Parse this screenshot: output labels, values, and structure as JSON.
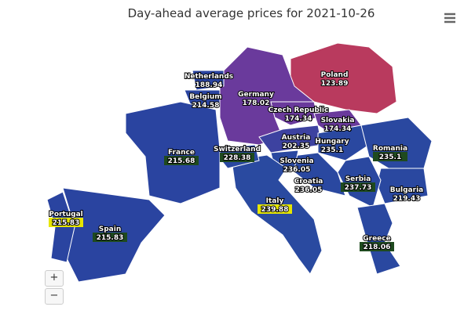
{
  "title": "Day-ahead average prices for 2021-10-26",
  "regions": [
    {
      "name": "Poland",
      "value": 123.89,
      "color": "#b93a5e"
    },
    {
      "name": "Germany",
      "value": 178.02,
      "color": "#6a3a9c"
    },
    {
      "name": "Netherlands",
      "value": 188.94,
      "color": "#2a44a0"
    },
    {
      "name": "Belgium",
      "value": 214.58,
      "color": "#2a44a0"
    },
    {
      "name": "Czech Republic",
      "value": 174.34,
      "color": "#6a3a9c"
    },
    {
      "name": "Slovakia",
      "value": 174.34,
      "color": "#6a3a9c"
    },
    {
      "name": "Austria",
      "value": 202.35,
      "color": "#3d42a0"
    },
    {
      "name": "Hungary",
      "value": 235.1,
      "color": "#2a48a0"
    },
    {
      "name": "Romania",
      "value": 235.1,
      "color": "#2a48a0"
    },
    {
      "name": "Bulgaria",
      "value": 219.43,
      "color": "#2a48a0"
    },
    {
      "name": "Serbia",
      "value": 237.73,
      "color": "#2a48a0"
    },
    {
      "name": "Croatia",
      "value": 236.05,
      "color": "#2a48a0"
    },
    {
      "name": "Slovenia",
      "value": 236.05,
      "color": "#2a48a0"
    },
    {
      "name": "Italy",
      "value": 239.88,
      "color": "#2a4aa0"
    },
    {
      "name": "Switzerland",
      "value": 228.38,
      "color": "#2a48a0"
    },
    {
      "name": "France",
      "value": 215.68,
      "color": "#2a44a0"
    },
    {
      "name": "Spain",
      "value": 215.83,
      "color": "#2a44a0"
    },
    {
      "name": "Portugal",
      "value": 215.83,
      "color": "#2a44a0"
    },
    {
      "name": "Greece",
      "value": 218.06,
      "color": "#2a48a0"
    }
  ],
  "controls": {
    "zoom_in": "+",
    "zoom_out": "−"
  }
}
